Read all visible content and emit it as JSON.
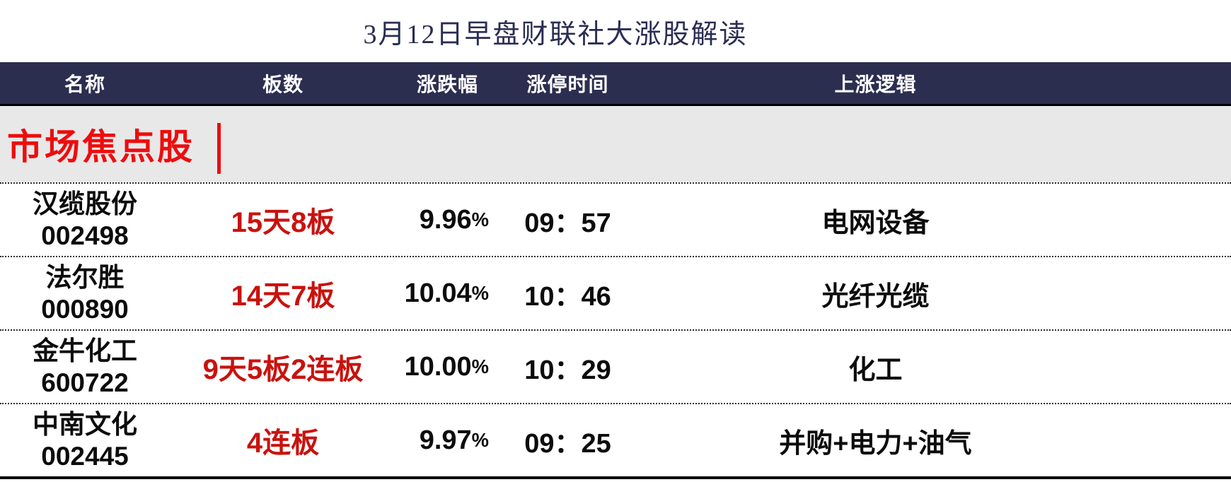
{
  "title": "3月12日早盘财联社大涨股解读",
  "colors": {
    "header_bg": "#2c2e50",
    "title_text": "#2a2d52",
    "section_red": "#ed0d0d",
    "board_red": "#c9120e",
    "section_bg": "#e8e8e9",
    "body_text": "#0c0c0c"
  },
  "table": {
    "headers": [
      "名称",
      "板数",
      "涨跌幅",
      "涨停时间",
      "上涨逻辑"
    ],
    "section": {
      "title": "市场焦点股"
    },
    "rows": [
      {
        "name": "汉缆股份",
        "code": "002498",
        "board": "15天8板",
        "change_value": "9.96",
        "change_unit": "%",
        "time": "09：57",
        "logic": "电网设备"
      },
      {
        "name": "法尔胜",
        "code": "000890",
        "board": "14天7板",
        "change_value": "10.04",
        "change_unit": "%",
        "time": "10：46",
        "logic": "光纤光缆"
      },
      {
        "name": "金牛化工",
        "code": "600722",
        "board": "9天5板2连板",
        "change_value": "10.00",
        "change_unit": "%",
        "time": "10：29",
        "logic": "化工"
      },
      {
        "name": "中南文化",
        "code": "002445",
        "board": "4连板",
        "change_value": "9.97",
        "change_unit": "%",
        "time": "09：25",
        "logic": "并购+电力+油气"
      }
    ]
  }
}
